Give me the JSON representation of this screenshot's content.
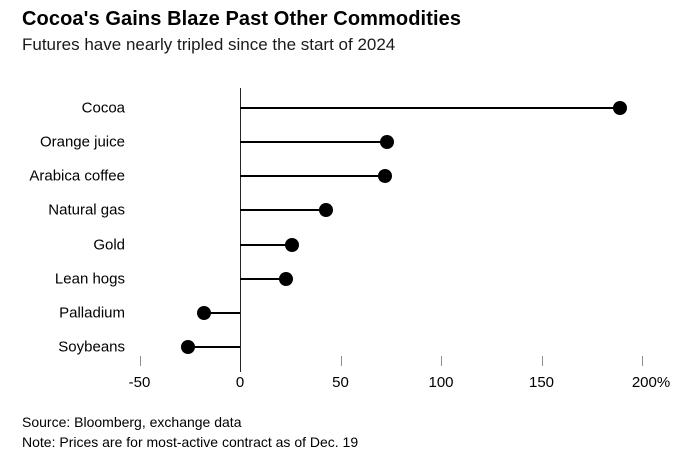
{
  "header": {
    "title": "Cocoa's Gains Blaze Past Other Commodities",
    "subtitle": "Futures have nearly tripled since the start of 2024"
  },
  "chart_data": {
    "type": "bar",
    "variant": "horizontal-lollipop",
    "title": "Cocoa's Gains Blaze Past Other Commodities",
    "subtitle": "Futures have nearly tripled since the start of 2024",
    "categories": [
      "Cocoa",
      "Orange juice",
      "Arabica coffee",
      "Natural gas",
      "Gold",
      "Lean hogs",
      "Palladium",
      "Soybeans"
    ],
    "values": [
      189,
      73,
      72,
      43,
      26,
      23,
      -18,
      -26
    ],
    "unit": "%",
    "xlabel": "",
    "ylabel": "",
    "xlim": [
      -75,
      218
    ],
    "x_ticks": [
      -50,
      0,
      50,
      100,
      150,
      200
    ],
    "x_tick_labels": [
      "-50",
      "0",
      "50",
      "100",
      "150",
      "200%"
    ],
    "grid": false,
    "legend": "none",
    "marker_color": "#000000",
    "line_color": "#000000",
    "axis_color": "#262626",
    "tick_color": "#8f8f8f"
  },
  "footer": {
    "source": "Source: Bloomberg, exchange data",
    "note": "Note: Prices are for most-active contract as of Dec. 19"
  }
}
